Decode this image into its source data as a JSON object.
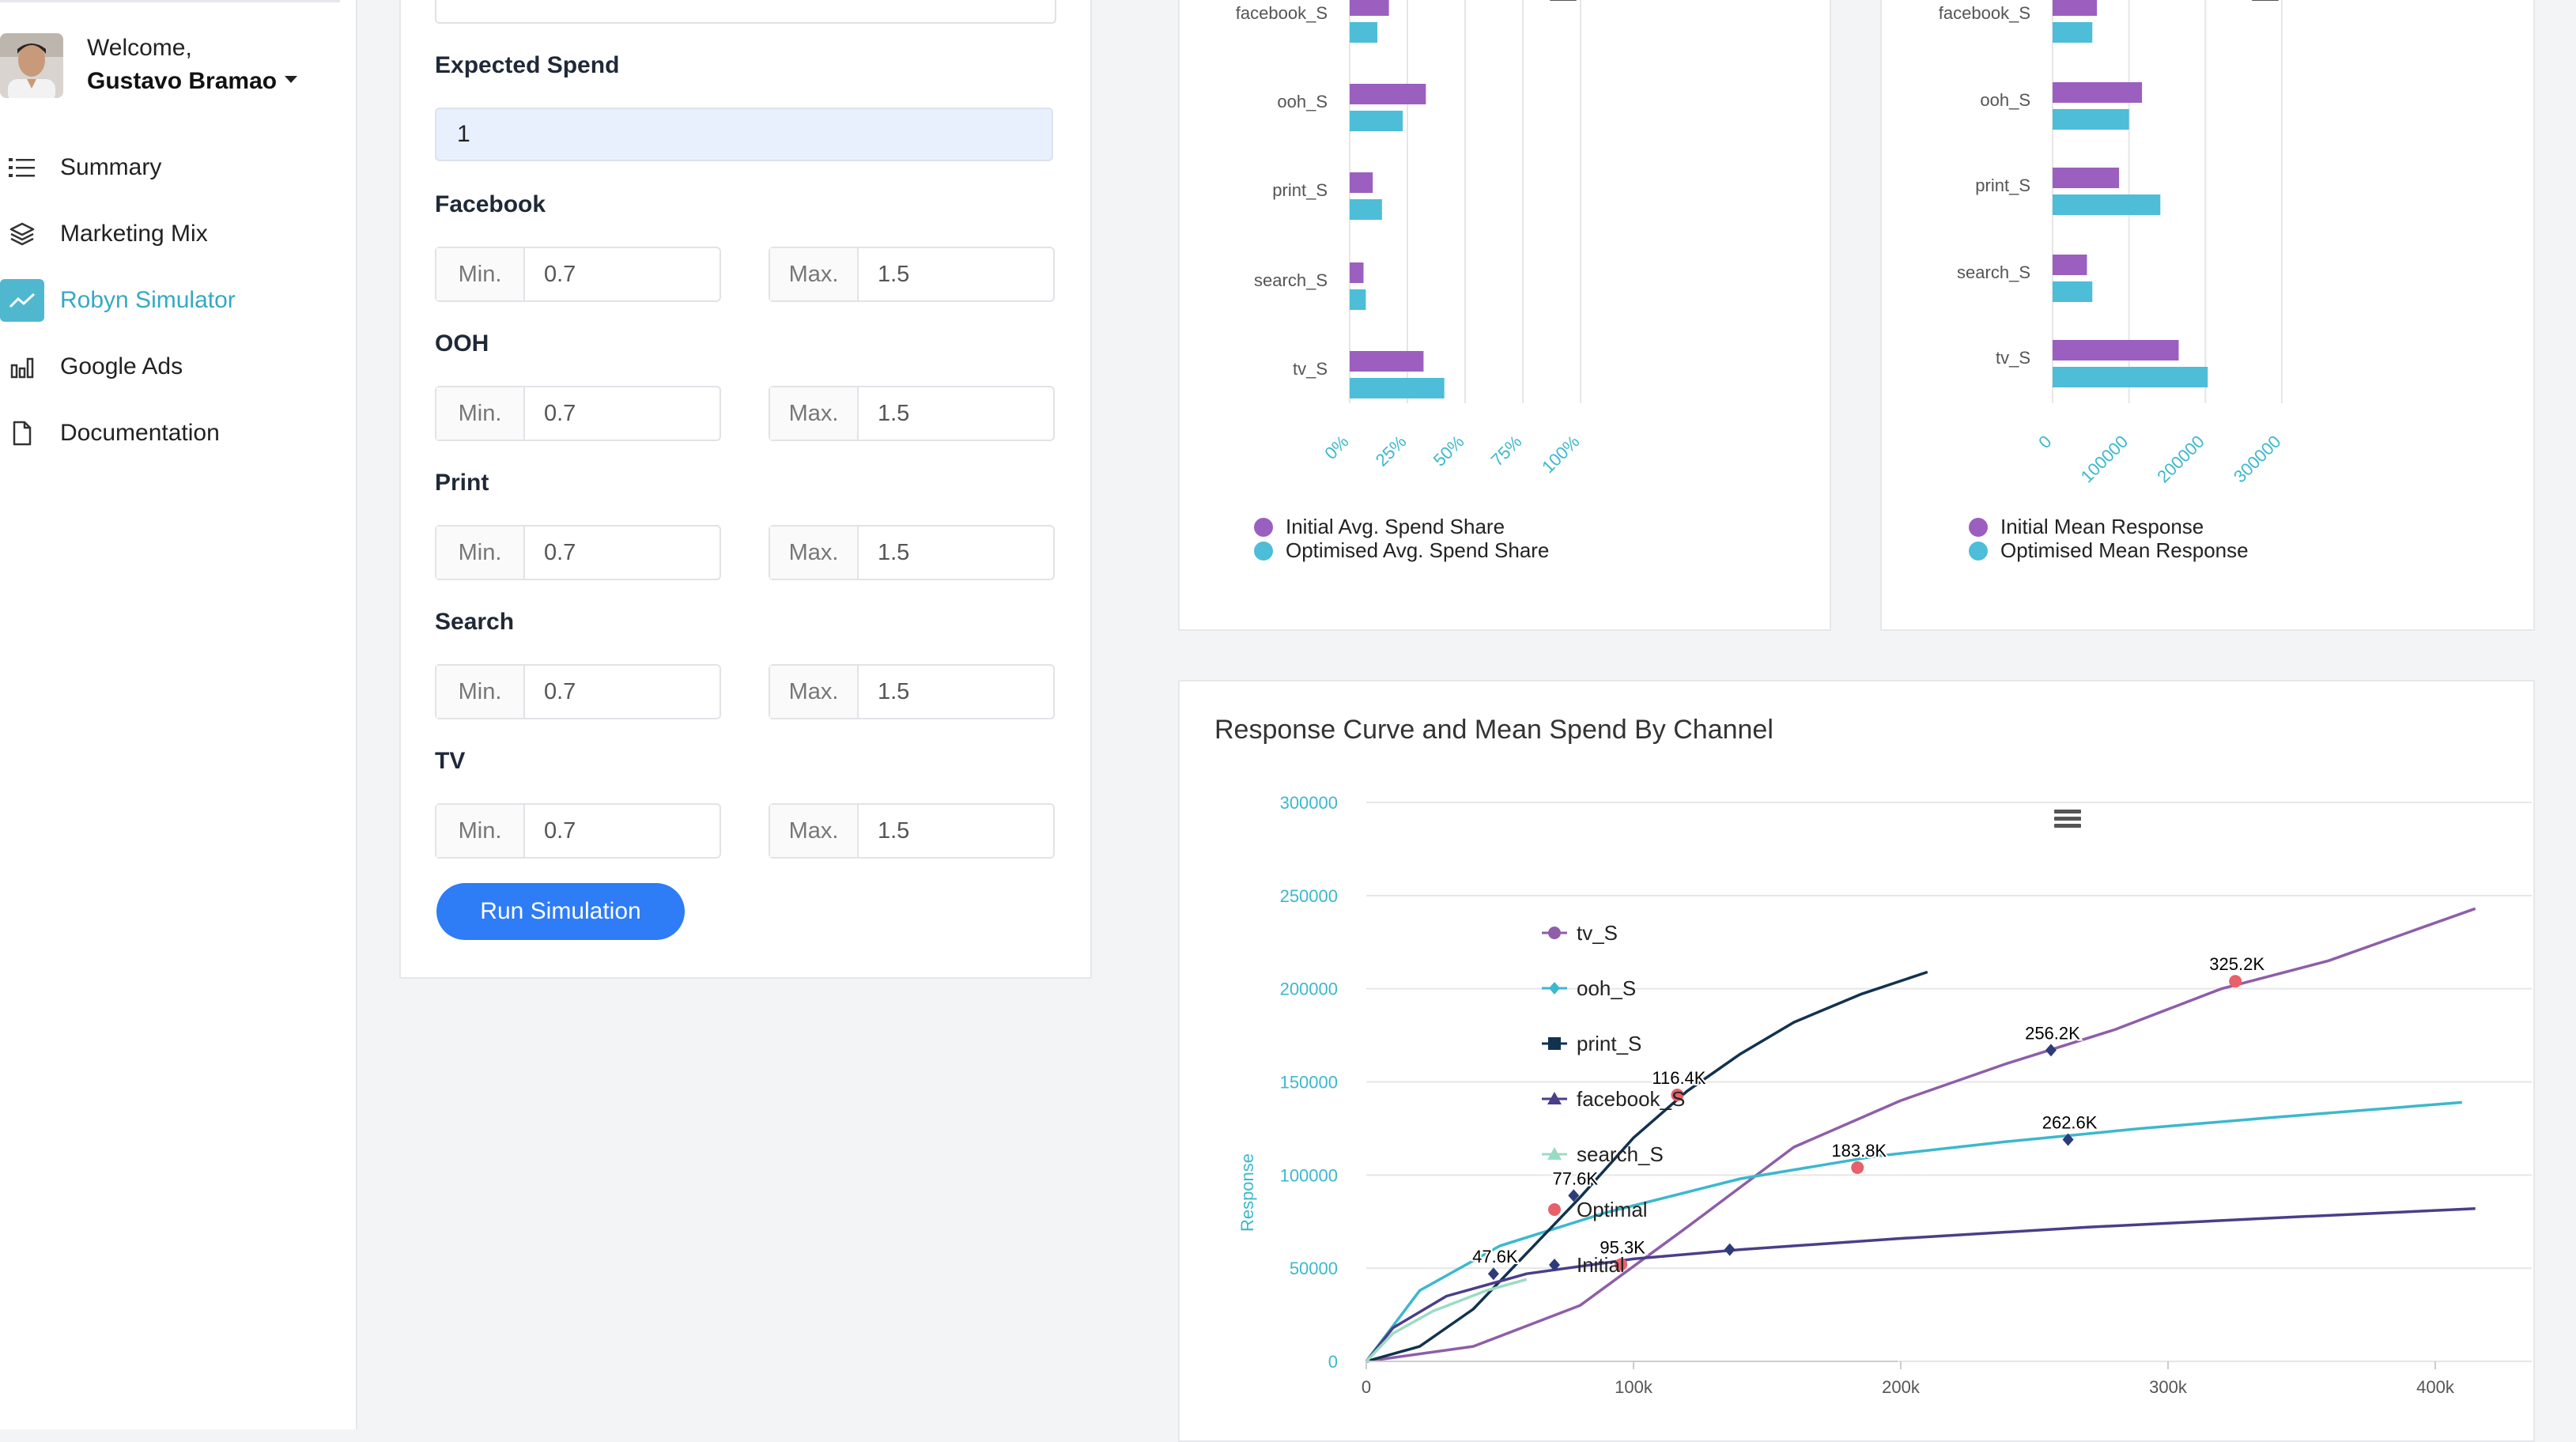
{
  "sidebar": {
    "welcome": "Welcome,",
    "username": "Gustavo Bramao",
    "items": [
      {
        "label": "Summary",
        "icon": "list-icon",
        "active": false
      },
      {
        "label": "Marketing Mix",
        "icon": "layers-icon",
        "active": false
      },
      {
        "label": "Robyn Simulator",
        "icon": "trend-icon",
        "active": true
      },
      {
        "label": "Google Ads",
        "icon": "bar-chart-icon",
        "active": false
      },
      {
        "label": "Documentation",
        "icon": "document-icon",
        "active": false
      }
    ]
  },
  "form": {
    "expected_spend_label": "Expected Spend",
    "expected_spend_value": "1",
    "min_label": "Min.",
    "max_label": "Max.",
    "channels": [
      {
        "label": "Facebook",
        "min": "0.7",
        "max": "1.5"
      },
      {
        "label": "OOH",
        "min": "0.7",
        "max": "1.5"
      },
      {
        "label": "Print",
        "min": "0.7",
        "max": "1.5"
      },
      {
        "label": "Search",
        "min": "0.7",
        "max": "1.5"
      },
      {
        "label": "TV",
        "min": "0.7",
        "max": "1.5"
      }
    ],
    "run_button": "Run Simulation"
  },
  "chart_data": [
    {
      "type": "bar",
      "orientation": "horizontal",
      "categories": [
        "facebook_S",
        "ooh_S",
        "print_S",
        "search_S",
        "tv_S"
      ],
      "series": [
        {
          "name": "Initial Avg. Spend Share",
          "color": "#9b5fc0",
          "values": [
            0.17,
            0.33,
            0.1,
            0.06,
            0.32
          ]
        },
        {
          "name": "Optimised Avg. Spend Share",
          "color": "#4dbdd8",
          "values": [
            0.12,
            0.23,
            0.14,
            0.07,
            0.41
          ]
        }
      ],
      "x_ticks": [
        "0%",
        "25%",
        "50%",
        "75%",
        "100%"
      ],
      "xlim": [
        0,
        1
      ],
      "legend": "bottom-left"
    },
    {
      "type": "bar",
      "orientation": "horizontal",
      "categories": [
        "facebook_S",
        "ooh_S",
        "print_S",
        "search_S",
        "tv_S"
      ],
      "series": [
        {
          "name": "Initial Mean Response",
          "color": "#9b5fc0",
          "values": [
            58000,
            117000,
            87000,
            45000,
            165000
          ]
        },
        {
          "name": "Optimised Mean Response",
          "color": "#4dbdd8",
          "values": [
            52000,
            100000,
            141000,
            52000,
            203000
          ]
        }
      ],
      "x_ticks": [
        "0",
        "100000",
        "200000",
        "300000"
      ],
      "xlim": [
        0,
        300000
      ],
      "legend": "bottom-left"
    },
    {
      "type": "line",
      "title": "Response Curve and Mean Spend By Channel",
      "ylabel": "Response",
      "y_ticks": [
        "0",
        "50000",
        "100000",
        "150000",
        "200000",
        "250000",
        "300000"
      ],
      "ylim": [
        0,
        300000
      ],
      "x_ticks": [
        "0",
        "100k",
        "200k",
        "300k",
        "400k"
      ],
      "xlim": [
        0,
        430000
      ],
      "series": [
        {
          "name": "tv_S",
          "color": "#8e5ea8",
          "marker": "circle",
          "points": [
            [
              0,
              0
            ],
            [
              40000,
              8000
            ],
            [
              80000,
              30000
            ],
            [
              120000,
              72000
            ],
            [
              160000,
              115000
            ],
            [
              200000,
              140000
            ],
            [
              240000,
              160000
            ],
            [
              280000,
              178000
            ],
            [
              320000,
              200000
            ],
            [
              360000,
              215000
            ],
            [
              415000,
              243000
            ]
          ]
        },
        {
          "name": "ooh_S",
          "color": "#3cb8cc",
          "marker": "diamond",
          "points": [
            [
              0,
              0
            ],
            [
              20000,
              38000
            ],
            [
              50000,
              62000
            ],
            [
              90000,
              80000
            ],
            [
              140000,
              98000
            ],
            [
              190000,
              110000
            ],
            [
              240000,
              118000
            ],
            [
              290000,
              125000
            ],
            [
              340000,
              131000
            ],
            [
              410000,
              139000
            ]
          ]
        },
        {
          "name": "print_S",
          "color": "#12324f",
          "marker": "square",
          "points": [
            [
              0,
              0
            ],
            [
              20000,
              8000
            ],
            [
              40000,
              28000
            ],
            [
              60000,
              58000
            ],
            [
              80000,
              88000
            ],
            [
              100000,
              120000
            ],
            [
              120000,
              145000
            ],
            [
              140000,
              165000
            ],
            [
              160000,
              182000
            ],
            [
              185000,
              197000
            ],
            [
              210000,
              209000
            ]
          ]
        },
        {
          "name": "facebook_S",
          "color": "#4a3e8a",
          "marker": "triangle",
          "points": [
            [
              0,
              0
            ],
            [
              10000,
              18000
            ],
            [
              30000,
              35000
            ],
            [
              60000,
              47000
            ],
            [
              100000,
              55000
            ],
            [
              140000,
              60000
            ],
            [
              200000,
              66000
            ],
            [
              270000,
              72000
            ],
            [
              340000,
              77000
            ],
            [
              415000,
              82000
            ]
          ]
        },
        {
          "name": "search_S",
          "color": "#9adcc2",
          "marker": "triangle",
          "points": [
            [
              0,
              0
            ],
            [
              10000,
              15000
            ],
            [
              25000,
              27000
            ],
            [
              45000,
              38000
            ],
            [
              60000,
              44000
            ]
          ]
        },
        {
          "name": "Optimal",
          "color": "#e8606a",
          "marker": "circle",
          "points": [
            [
              116400,
              143000
            ],
            [
              95300,
              52000
            ],
            [
              183800,
              104000
            ],
            [
              325200,
              204000
            ]
          ],
          "labels": [
            "116.4K",
            "95.3K",
            "183.8K",
            "325.2K"
          ]
        },
        {
          "name": "Initial",
          "color": "#2e3b7a",
          "marker": "diamond",
          "points": [
            [
              47600,
              47000
            ],
            [
              77600,
              89000
            ],
            [
              256200,
              167000
            ],
            [
              262600,
              119000
            ],
            [
              136000,
              60000
            ]
          ],
          "labels": [
            "47.6K",
            "77.6K",
            "256.2K",
            "262.6K",
            ""
          ]
        }
      ],
      "legend": "right"
    }
  ]
}
